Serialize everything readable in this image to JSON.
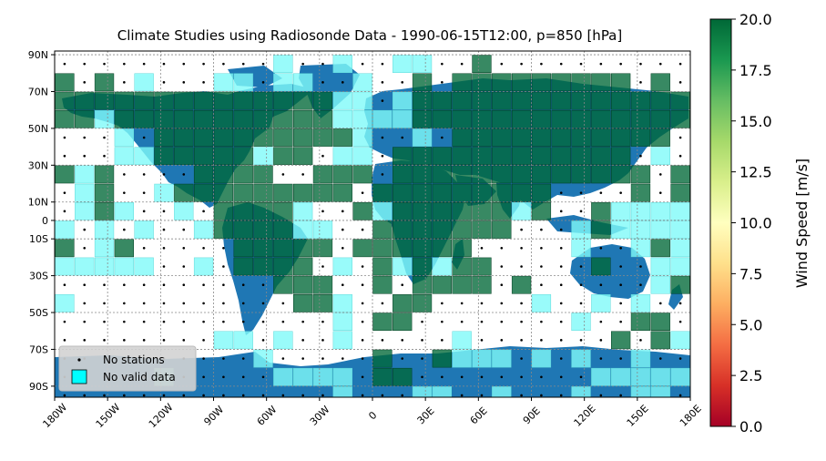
{
  "title": "Climate Studies using Radiosonde Data - 1990-06-15T12:00, p=850 [hPa]",
  "colorbar": {
    "label": "Wind Speed [m/s]",
    "ticks": [
      "0.0",
      "2.5",
      "5.0",
      "7.5",
      "10.0",
      "12.5",
      "15.0",
      "17.5",
      "20.0"
    ],
    "range": [
      0,
      20
    ],
    "colormap": "RdYlGn"
  },
  "axes": {
    "x_ticks": [
      "180W",
      "150W",
      "120W",
      "90W",
      "60W",
      "30W",
      "0",
      "30E",
      "60E",
      "90E",
      "120E",
      "150E",
      "180E"
    ],
    "x_values": [
      -180,
      -150,
      -120,
      -90,
      -60,
      -30,
      0,
      30,
      60,
      90,
      120,
      150,
      180
    ],
    "y_ticks": [
      "90N",
      "70N",
      "50N",
      "30N",
      "10N",
      "0",
      "10S",
      "30S",
      "50S",
      "70S",
      "90S"
    ],
    "y_values": [
      90,
      70,
      50,
      30,
      10,
      0,
      -10,
      -30,
      -50,
      -70,
      -90
    ]
  },
  "legend": {
    "placement": "lower-left",
    "items": [
      {
        "label": "No stations",
        "symbol": "dot"
      },
      {
        "label": "No valid data",
        "symbol": "cyan-square"
      }
    ]
  },
  "colors": {
    "ocean": "#ffffff",
    "land": "#1f77b4",
    "valid_cell": "#006837",
    "no_valid_cell": "#7ffaf9",
    "grid": "#888888"
  },
  "grid_cells": {
    "lon_start": -180,
    "lat_top": 90,
    "cell_deg": 10,
    "legend_codes": {
      "G": "wind speed ~19-20 m/s",
      "C": "no valid data",
      ".": "no stations"
    },
    "rows": [
      "...........C..C..CC..G..........",
      "G.G.C...CC.CC..C..G.GGGGGGGGG.G.",
      "GGGGGGGGGGGGGGCC.CGGGGGGGGGGGGGG",
      "GGCGGGGGGGGGGGCCCCGGGGGGGGGGGGGG",
      "...C.GGGGGGGGGGC..C.GGGGGGGGGGG.",
      "...CCGGGGGCGG.CC.GGGGGGGGGGGG.C.",
      "GCG....GGGG..GGG.GGGGGGGGGGGGG.G",
      ".CG..CGGGGGGGGG.GGGGGGGGG....G.G",
      ".CGC..C.GGGGC..GCGGGGGGCG..GCCCC",
      "C.C.C..CGGGGCC..GGGGGGG...CGCCCC",
      "G.CG.....GGGGG.GGGGGG.....C..CGC",
      "CCCCC..C.GGGG.C.GCGCGG.....G..CC",
      "...........GGG..G.GGGG.G......CG",
      "C...........GGC..GG.....C..C.C..",
      "..............C.GG........C..GG.",
      "........CC.C..C.....C.......G.GC",
      "..........C.....G..GCCC.C.C..C..",
      ".....C.....CCCC.GG.........CCCCC",
      "..............C...CC..C...C..CC."
    ]
  }
}
